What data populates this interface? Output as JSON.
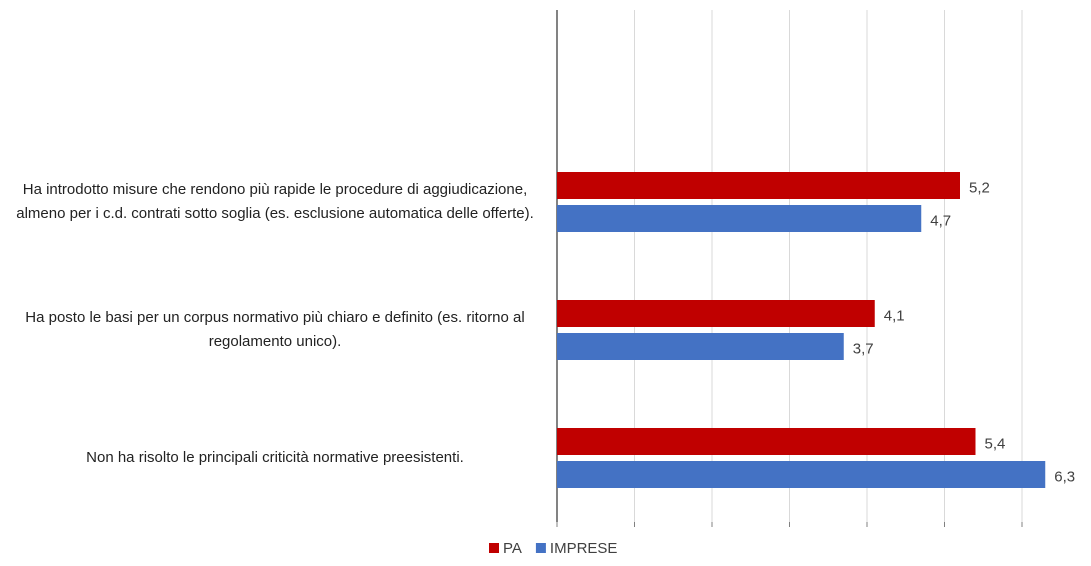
{
  "chart_data": {
    "type": "barh",
    "categories": [
      null,
      "Ha introdotto misure che rendono più rapide le procedure di aggiudicazione, almeno per i c.d. contrati sotto soglia (es. esclusione automatica delle offerte).",
      "Ha posto le basi per un corpus normativo più chiaro e definito (es. ritorno al regolamento unico).",
      "Non ha risolto le principali criticità normative preesistenti."
    ],
    "series": [
      {
        "name": "PA",
        "color": "#c00000",
        "values": [
          null,
          5.2,
          4.1,
          5.4
        ],
        "value_labels": [
          null,
          "5,2",
          "4,1",
          "5,4"
        ]
      },
      {
        "name": "IMPRESE",
        "color": "#4472c4",
        "values": [
          null,
          4.7,
          3.7,
          6.3
        ],
        "value_labels": [
          null,
          "4,7",
          "3,7",
          "6,3"
        ]
      }
    ],
    "xlim": [
      0,
      6.5
    ],
    "xticks": [
      0,
      1,
      2,
      3,
      4,
      5,
      6
    ],
    "grid": true,
    "legend": "bottom"
  }
}
